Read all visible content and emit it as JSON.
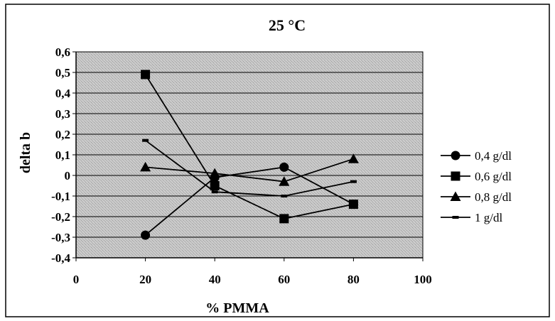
{
  "chart_data": {
    "type": "line",
    "title": "25 °C",
    "xlabel": "% PMMA",
    "ylabel": "delta b",
    "xlim": [
      0,
      100
    ],
    "ylim": [
      -0.4,
      0.6
    ],
    "x_ticks": [
      0,
      20,
      40,
      60,
      80,
      100
    ],
    "y_ticks": [
      -0.4,
      -0.3,
      -0.2,
      -0.1,
      0,
      0.1,
      0.2,
      0.3,
      0.4,
      0.5,
      0.6
    ],
    "x_tick_labels": [
      "0",
      "20",
      "40",
      "60",
      "80",
      "100"
    ],
    "y_tick_labels": [
      "-0,4",
      "-0,3",
      "-0,2",
      "-0,1",
      "0",
      "0,1",
      "0,2",
      "0,3",
      "0,4",
      "0,5",
      "0,6"
    ],
    "grid": true,
    "legend_position": "right",
    "series": [
      {
        "name": "0,4 g/dl",
        "marker": "circle",
        "x": [
          20,
          40,
          60,
          80
        ],
        "y": [
          -0.29,
          -0.01,
          0.04,
          -0.14
        ]
      },
      {
        "name": "0,6 g/dl",
        "marker": "square",
        "x": [
          20,
          40,
          60,
          80
        ],
        "y": [
          0.49,
          -0.05,
          -0.21,
          -0.14
        ]
      },
      {
        "name": "0,8 g/dl",
        "marker": "triangle",
        "x": [
          20,
          40,
          60,
          80
        ],
        "y": [
          0.04,
          0.01,
          -0.03,
          0.08
        ]
      },
      {
        "name": "1 g/dl",
        "marker": "dash",
        "x": [
          20,
          40,
          60,
          80
        ],
        "y": [
          0.17,
          -0.08,
          -0.1,
          -0.03
        ]
      }
    ]
  }
}
